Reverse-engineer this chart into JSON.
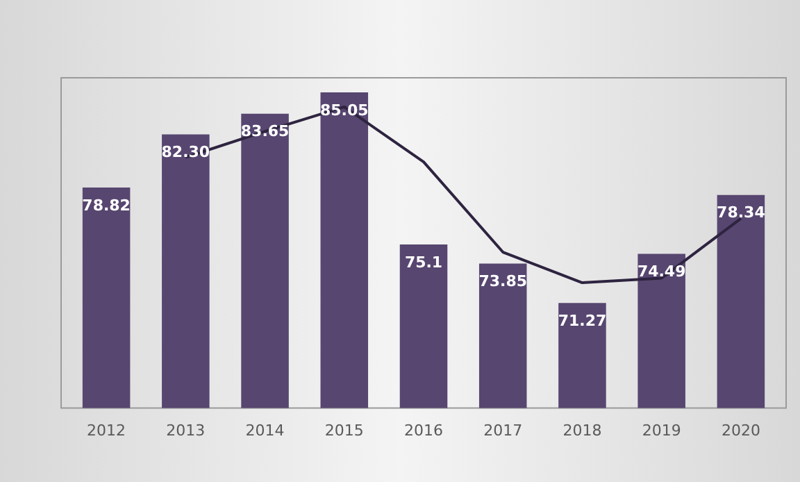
{
  "chart_data": {
    "type": "bar",
    "categories": [
      "2012",
      "2013",
      "2014",
      "2015",
      "2016",
      "2017",
      "2018",
      "2019",
      "2020"
    ],
    "series": [
      {
        "color": "#574670",
        "values": [
          78.82,
          82.3,
          83.65,
          85.05,
          75.1,
          73.85,
          71.27,
          74.49,
          78.34
        ],
        "value_labels": [
          "78.82",
          "82.30",
          "83.65",
          "85.05",
          "75.1",
          "73.85",
          "71.27",
          "74.49",
          "78.34"
        ]
      },
      {
        "type": "line",
        "color": "#2e2440",
        "values": [
          null,
          80.8,
          82.5,
          84.1,
          80.5,
          74.6,
          72.6,
          72.9,
          76.8
        ]
      }
    ],
    "ylim": [
      64.4,
      86
    ],
    "tick_labels": "x",
    "grid": false,
    "legend": false,
    "marker": "none"
  }
}
